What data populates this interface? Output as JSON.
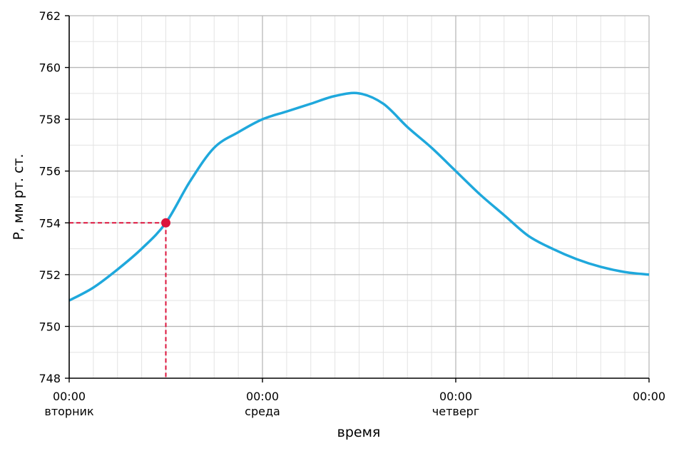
{
  "chart_data": {
    "type": "line",
    "title": "",
    "xlabel": "время",
    "ylabel": "P, мм рт. ст.",
    "xlim": [
      0,
      72
    ],
    "ylim": [
      748,
      762
    ],
    "x_ticks": [
      {
        "x": 0,
        "time": "00:00",
        "day": "вторник"
      },
      {
        "x": 24,
        "time": "00:00",
        "day": "среда"
      },
      {
        "x": 48,
        "time": "00:00",
        "day": "четверг"
      },
      {
        "x": 72,
        "time": "00:00",
        "day": ""
      }
    ],
    "y_ticks": [
      "748",
      "750",
      "752",
      "754",
      "756",
      "758",
      "760",
      "762"
    ],
    "y_tick_values": [
      748,
      750,
      752,
      754,
      756,
      758,
      760,
      762
    ],
    "grid": {
      "major": true,
      "minor": true
    },
    "series": [
      {
        "color": "#1fa8dc",
        "x": [
          0,
          3,
          6,
          9,
          12,
          15,
          18,
          21,
          24,
          27,
          30,
          33,
          36,
          39,
          42,
          45,
          48,
          51,
          54,
          57,
          60,
          63,
          66,
          69,
          72
        ],
        "y": [
          751.0,
          751.5,
          752.2,
          753.0,
          754.0,
          755.6,
          756.9,
          757.5,
          758.0,
          758.3,
          758.6,
          758.9,
          759.0,
          758.6,
          757.7,
          756.9,
          756.0,
          755.1,
          754.3,
          753.5,
          753.0,
          752.6,
          752.3,
          752.1,
          752.0
        ]
      }
    ],
    "highlight": {
      "x": 12,
      "y": 754,
      "color": "#dc143c"
    }
  }
}
